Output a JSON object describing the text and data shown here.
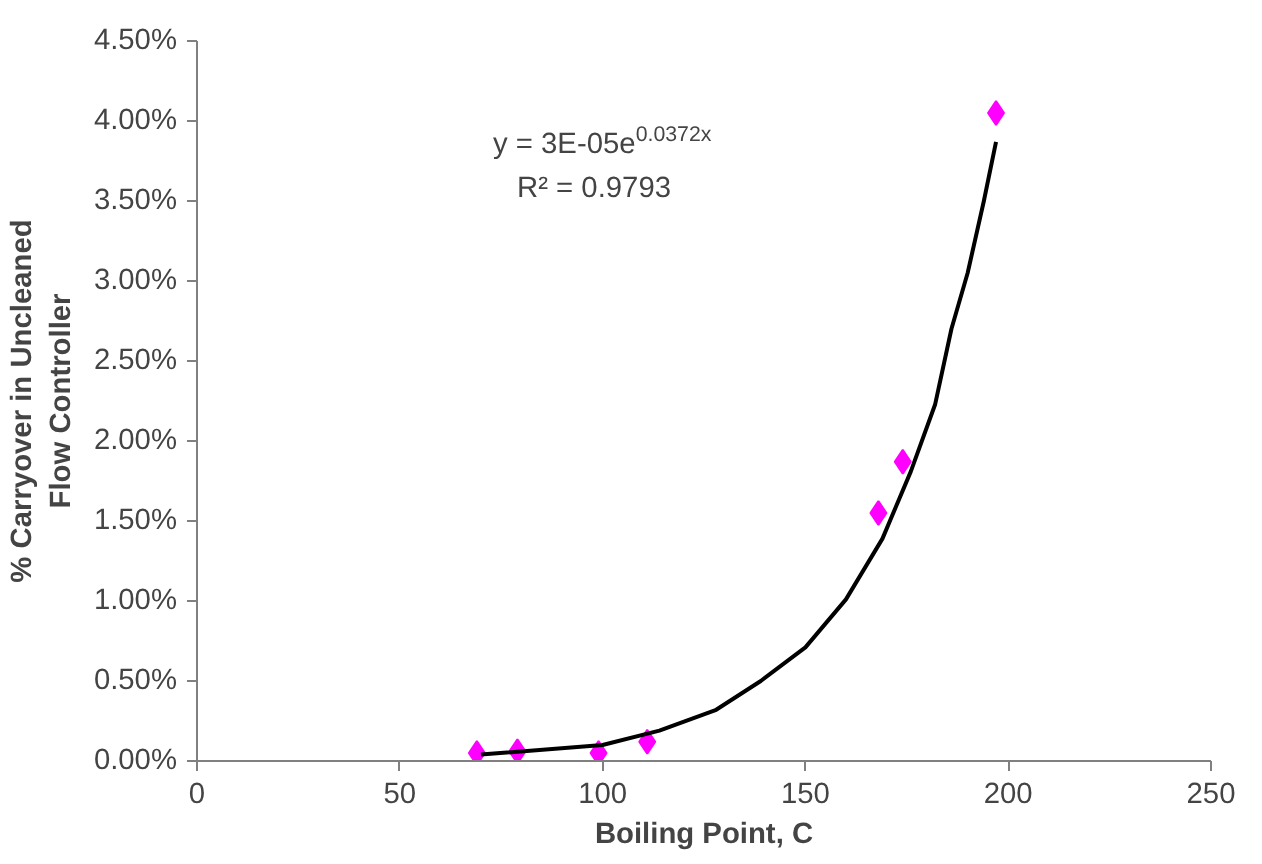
{
  "chart_data": {
    "type": "scatter",
    "xlabel": "Boiling Point, C",
    "ylabel": "% Carryover in Uncleaned Flow Controller",
    "xlim": [
      0,
      250
    ],
    "xticks": [
      0,
      50,
      100,
      150,
      200,
      250
    ],
    "ylim": [
      0,
      4.5
    ],
    "yticks": [
      {
        "value": 0,
        "label": "0.00%"
      },
      {
        "value": 0.5,
        "label": "0.50%"
      },
      {
        "value": 1,
        "label": "1.00%"
      },
      {
        "value": 1.5,
        "label": "1.50%"
      },
      {
        "value": 2,
        "label": "2.00%"
      },
      {
        "value": 2.5,
        "label": "2.50%"
      },
      {
        "value": 3,
        "label": "3.00%"
      },
      {
        "value": 3.5,
        "label": "3.50%"
      },
      {
        "value": 4,
        "label": "4.00%"
      },
      {
        "value": 4.5,
        "label": "4.50%"
      }
    ],
    "grid": false,
    "series": [
      {
        "color": "#ff00ff",
        "marker": "diamond",
        "x": [
          69,
          79,
          99,
          111,
          168,
          174,
          197
        ],
        "values": [
          0.05,
          0.06,
          0.05,
          0.12,
          1.55,
          1.87,
          4.05
        ]
      },
      {
        "type": "line",
        "color": "#000000",
        "marker": "none",
        "line_style": "solid",
        "x": [
          70,
          100,
          114,
          128,
          139,
          150,
          160,
          169,
          176,
          182,
          186,
          190,
          194,
          197
        ],
        "values": [
          0.04,
          0.1,
          0.19,
          0.32,
          0.5,
          0.71,
          1.01,
          1.39,
          1.81,
          2.23,
          2.7,
          3.05,
          3.5,
          3.87
        ]
      }
    ],
    "annotations": [
      "y = 3E-05e$^{0.0372x}$",
      "R² = 0.9793"
    ]
  }
}
